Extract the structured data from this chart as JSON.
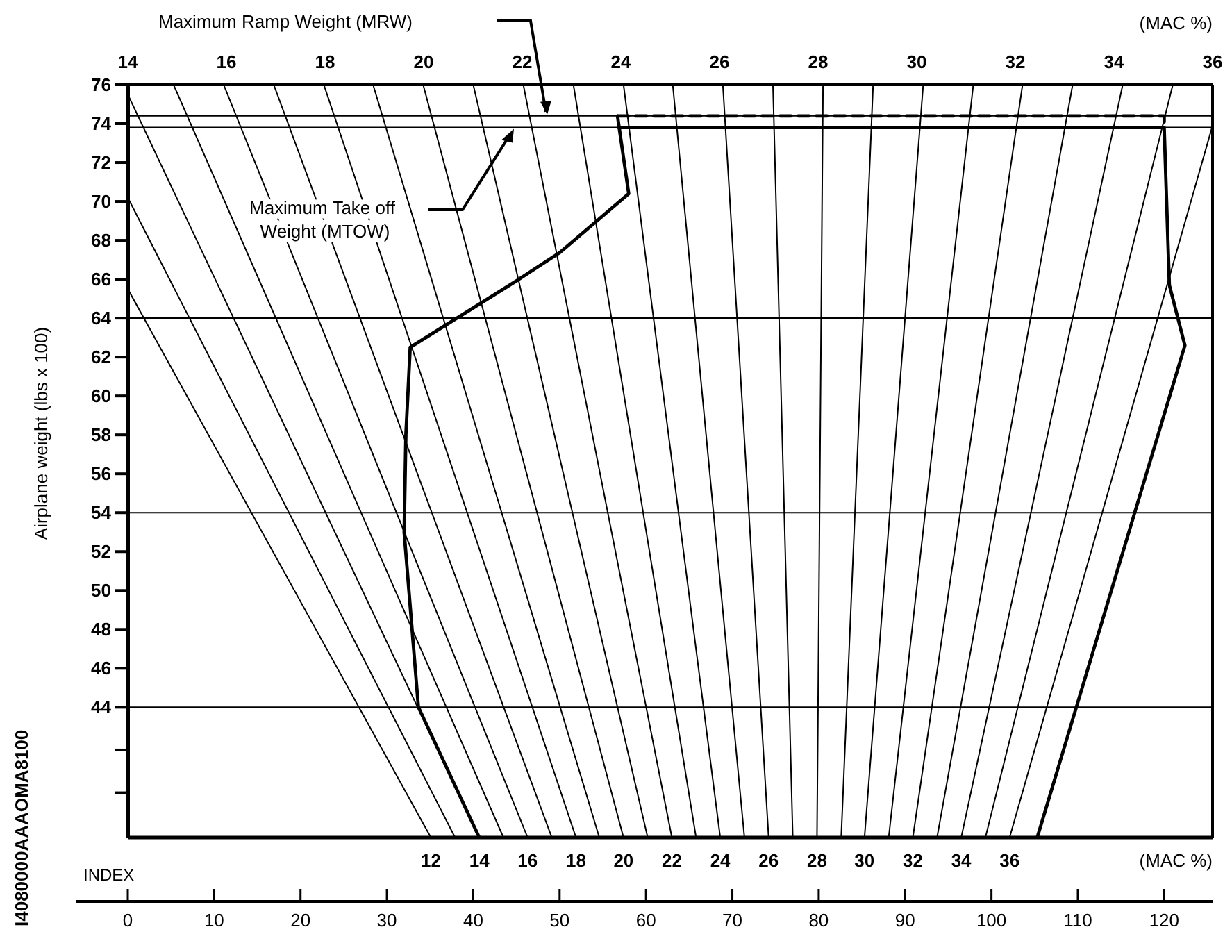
{
  "chart_data": {
    "type": "line",
    "xlabel": "INDEX",
    "ylabel": "Airplane weight (lbs x 100)",
    "x2label": "(MAC %)",
    "xlim": [
      0,
      125.6
    ],
    "ylim": [
      37.3,
      76
    ],
    "xticks": [
      0,
      10,
      20,
      30,
      40,
      50,
      60,
      70,
      80,
      90,
      100,
      110,
      120
    ],
    "yticks": [
      {
        "value": 39.6,
        "label": null
      },
      {
        "value": 41.8,
        "label": null
      },
      44,
      46,
      48,
      50,
      52,
      54,
      56,
      58,
      60,
      62,
      64,
      66,
      68,
      70,
      72,
      74,
      76
    ],
    "x2lim": [
      14,
      36
    ],
    "x2ticks": [
      14,
      16,
      18,
      20,
      22,
      24,
      26,
      28,
      30,
      32,
      34,
      36
    ],
    "grid": false,
    "marker": "none",
    "ref_lines": [
      {
        "axis": "y",
        "value": 74.4
      },
      {
        "axis": "y",
        "value": 73.8
      },
      {
        "axis": "y",
        "value": 64
      },
      {
        "axis": "y",
        "value": 54
      },
      {
        "axis": "y",
        "value": 44
      }
    ],
    "annotations": [
      "(MAC %)",
      "I4080000AAAOMA8100",
      "Maximum Ramp Weight (MRW)",
      "Maximum Take off Weight (MTOW)",
      {
        "text": "12",
        "x": 35.1,
        "y": 37.3
      },
      {
        "text": "14",
        "x": 40.7,
        "y": 37.3
      },
      {
        "text": "16",
        "x": 46.3,
        "y": 37.3
      },
      {
        "text": "18",
        "x": 51.9,
        "y": 37.3
      },
      {
        "text": "20",
        "x": 57.4,
        "y": 37.3
      },
      {
        "text": "22",
        "x": 63.0,
        "y": 37.3
      },
      {
        "text": "24",
        "x": 68.6,
        "y": 37.3
      },
      {
        "text": "26",
        "x": 74.2,
        "y": 37.3
      },
      {
        "text": "28",
        "x": 79.8,
        "y": 37.3
      },
      {
        "text": "30",
        "x": 85.3,
        "y": 37.3
      },
      {
        "text": "32",
        "x": 90.9,
        "y": 37.3
      },
      {
        "text": "34",
        "x": 96.5,
        "y": 37.3
      },
      {
        "text": "36",
        "x": 102.1,
        "y": 37.3
      }
    ],
    "series": [
      {
        "color": "#000000",
        "line_style": "solid",
        "x": [
          40.7,
          33.65,
          32.0,
          32.2,
          32.7,
          45.3,
          50.1,
          58.0,
          56.7
        ],
        "values": [
          37.3,
          44,
          53,
          58,
          62.5,
          66,
          67.4,
          70.4,
          74.4
        ]
      },
      {
        "color": "#000000",
        "line_style": "solid",
        "x": [
          56.8,
          120.0,
          120.6,
          122.4,
          105.3
        ],
        "values": [
          73.8,
          73.8,
          65.7,
          62.6,
          37.3
        ]
      },
      {
        "color": "#000000",
        "line_style": "dashed",
        "x": [
          56.7,
          120.0,
          120.0
        ],
        "values": [
          74.4,
          74.4,
          73.8
        ]
      },
      {
        "color": "#000000",
        "x": [
          35.1,
          0
        ],
        "values": [
          37.3,
          65.5
        ]
      },
      {
        "color": "#000000",
        "x": [
          37.9,
          0
        ],
        "values": [
          37.3,
          70.2
        ]
      },
      {
        "color": "#000000",
        "x": [
          40.7,
          0
        ],
        "values": [
          37.3,
          75.5
        ]
      },
      {
        "color": "#000000",
        "x": [
          43.5,
          5.3
        ],
        "values": [
          37.3,
          76
        ]
      },
      {
        "color": "#000000",
        "x": [
          46.3,
          11.1
        ],
        "values": [
          37.3,
          76
        ]
      },
      {
        "color": "#000000",
        "x": [
          49.1,
          16.9
        ],
        "values": [
          37.3,
          76
        ]
      },
      {
        "color": "#000000",
        "x": [
          51.9,
          22.7
        ],
        "values": [
          37.3,
          76
        ]
      },
      {
        "color": "#000000",
        "x": [
          54.6,
          28.4
        ],
        "values": [
          37.3,
          76
        ]
      },
      {
        "color": "#000000",
        "x": [
          57.4,
          34.2
        ],
        "values": [
          37.3,
          76
        ]
      },
      {
        "color": "#000000",
        "x": [
          60.2,
          40.0
        ],
        "values": [
          37.3,
          76
        ]
      },
      {
        "color": "#000000",
        "x": [
          63.0,
          45.8
        ],
        "values": [
          37.3,
          76
        ]
      },
      {
        "color": "#000000",
        "x": [
          65.8,
          51.6
        ],
        "values": [
          37.3,
          76
        ]
      },
      {
        "color": "#000000",
        "x": [
          68.6,
          57.4
        ],
        "values": [
          37.3,
          76
        ]
      },
      {
        "color": "#000000",
        "x": [
          71.4,
          63.1
        ],
        "values": [
          37.3,
          76
        ]
      },
      {
        "color": "#000000",
        "x": [
          74.2,
          68.9
        ],
        "values": [
          37.3,
          76
        ]
      },
      {
        "color": "#000000",
        "x": [
          77.0,
          74.7
        ],
        "values": [
          37.3,
          76
        ]
      },
      {
        "color": "#000000",
        "x": [
          79.8,
          80.5
        ],
        "values": [
          37.3,
          76
        ]
      },
      {
        "color": "#000000",
        "x": [
          82.6,
          86.3
        ],
        "values": [
          37.3,
          76
        ]
      },
      {
        "color": "#000000",
        "x": [
          85.3,
          92.1
        ],
        "values": [
          37.3,
          76
        ]
      },
      {
        "color": "#000000",
        "x": [
          88.1,
          97.9
        ],
        "values": [
          37.3,
          76
        ]
      },
      {
        "color": "#000000",
        "x": [
          90.9,
          103.6
        ],
        "values": [
          37.3,
          76
        ]
      },
      {
        "color": "#000000",
        "x": [
          93.7,
          109.4
        ],
        "values": [
          37.3,
          76
        ]
      },
      {
        "color": "#000000",
        "x": [
          96.5,
          115.2
        ],
        "values": [
          37.3,
          76
        ]
      },
      {
        "color": "#000000",
        "x": [
          99.3,
          121.0
        ],
        "values": [
          37.3,
          76
        ]
      },
      {
        "color": "#000000",
        "x": [
          102.1,
          125.6
        ],
        "values": [
          37.3,
          73.9
        ]
      }
    ]
  }
}
